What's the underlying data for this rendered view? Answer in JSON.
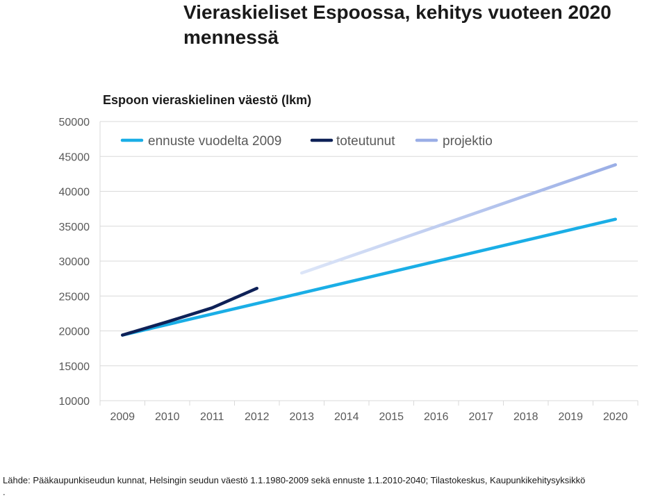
{
  "page": {
    "title": "Vieraskieliset Espoossa, kehitys vuoteen 2020 mennessä",
    "source": "Lähde: Pääkaupunkiseudun kunnat, Helsingin seudun väestö 1.1.1980-2009 sekä ennuste 1.1.2010-2040; Tilastokeskus, Kaupunkikehitysyksikkö",
    "source_tail": "."
  },
  "chart_data": {
    "type": "line",
    "title": "Espoon vieraskielinen väestö (lkm)",
    "xlabel": "",
    "ylabel": "",
    "categories": [
      "2009",
      "2010",
      "2011",
      "2012",
      "2013",
      "2014",
      "2015",
      "2016",
      "2017",
      "2018",
      "2019",
      "2020"
    ],
    "ylim": [
      10000,
      50000
    ],
    "yticks": [
      "10000",
      "15000",
      "20000",
      "25000",
      "30000",
      "35000",
      "40000",
      "45000",
      "50000"
    ],
    "grid": true,
    "legend": "top-left",
    "series": [
      {
        "name": "ennuste vuodelta 2009",
        "color": "#1aaee6",
        "points": [
          [
            2009,
            19400
          ],
          [
            2020,
            36000
          ]
        ]
      },
      {
        "name": "toteutunut",
        "color": "#0e2157",
        "points": [
          [
            2009,
            19400
          ],
          [
            2010,
            21300
          ],
          [
            2011,
            23300
          ],
          [
            2012,
            26100
          ]
        ]
      },
      {
        "name": "projektio",
        "color": "#9aaee6",
        "gradient_from": "#dde6f8",
        "points": [
          [
            2013,
            28300
          ],
          [
            2020,
            43800
          ]
        ]
      }
    ]
  }
}
